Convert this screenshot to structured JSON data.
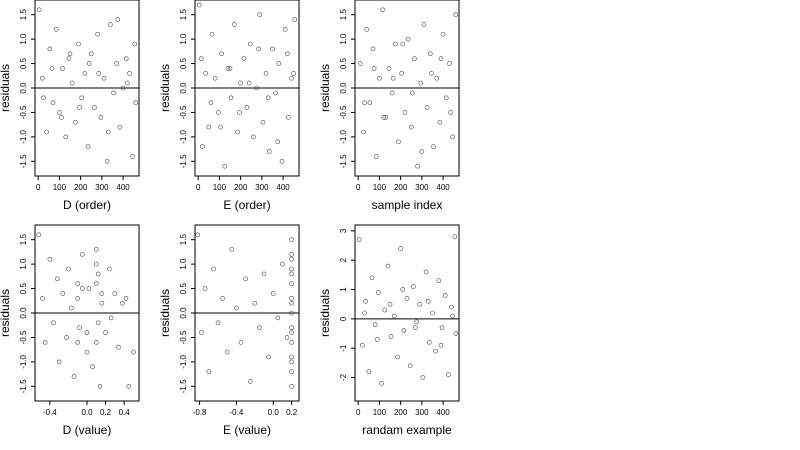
{
  "figure": {
    "background": "#ffffff",
    "point_color": "#444444",
    "line_color": "#000000"
  },
  "chart_data": [
    {
      "type": "scatter",
      "xlabel": "D (order)",
      "ylabel": "residuals",
      "xticks": [
        0,
        100,
        200,
        300,
        400
      ],
      "xtick_labels": [
        "0",
        "100",
        "200",
        "300",
        "400"
      ],
      "yticks": [
        -1.5,
        -1,
        -0.5,
        0,
        0.5,
        1,
        1.5
      ],
      "ytick_labels": [
        "-1.5",
        "-1.0",
        "-0.5",
        "0.0",
        "0.5",
        "1.0",
        "1.5"
      ],
      "xlim": [
        -15,
        475
      ],
      "ylim": [
        -1.8,
        1.8
      ],
      "hline": 0,
      "grid": false,
      "x": [
        5,
        20,
        40,
        55,
        70,
        85,
        100,
        115,
        130,
        145,
        160,
        175,
        190,
        205,
        220,
        235,
        250,
        265,
        280,
        295,
        310,
        325,
        340,
        355,
        370,
        385,
        400,
        415,
        430,
        445,
        455,
        460,
        25,
        65,
        110,
        150,
        195,
        240,
        285,
        330,
        375,
        420
      ],
      "y": [
        1.6,
        0.2,
        -0.9,
        0.8,
        -0.3,
        1.2,
        -0.5,
        0.4,
        -1.0,
        0.6,
        0.1,
        -0.7,
        0.9,
        -0.2,
        0.3,
        -1.2,
        0.7,
        -0.4,
        1.1,
        -0.6,
        0.2,
        -1.5,
        1.3,
        -0.1,
        0.5,
        -0.8,
        0.0,
        0.6,
        0.3,
        -1.4,
        0.9,
        -0.3,
        -0.2,
        0.4,
        -0.6,
        0.7,
        -0.4,
        0.5,
        0.3,
        -0.9,
        1.4,
        0.1
      ]
    },
    {
      "type": "scatter",
      "xlabel": "E (order)",
      "ylabel": "residuals",
      "xticks": [
        0,
        100,
        200,
        300,
        400
      ],
      "xtick_labels": [
        "0",
        "100",
        "200",
        "300",
        "400"
      ],
      "yticks": [
        -1.5,
        -1,
        -0.5,
        0,
        0.5,
        1,
        1.5
      ],
      "ytick_labels": [
        "-1.5",
        "-1.0",
        "-0.5",
        "0.0",
        "0.5",
        "1.0",
        "1.5"
      ],
      "xlim": [
        -15,
        475
      ],
      "ylim": [
        -1.8,
        1.8
      ],
      "hline": 0,
      "grid": false,
      "x": [
        5,
        20,
        35,
        50,
        65,
        80,
        95,
        110,
        125,
        140,
        155,
        170,
        185,
        200,
        215,
        230,
        245,
        260,
        275,
        290,
        305,
        320,
        335,
        350,
        365,
        380,
        395,
        410,
        425,
        440,
        455,
        15,
        60,
        105,
        150,
        195,
        240,
        285,
        330,
        375,
        420,
        450
      ],
      "y": [
        1.7,
        -1.2,
        0.3,
        -0.8,
        1.1,
        0.2,
        -0.5,
        0.7,
        -1.6,
        0.4,
        -0.2,
        1.3,
        -0.9,
        0.1,
        0.6,
        -0.4,
        0.9,
        -1.0,
        0.0,
        1.5,
        -0.7,
        0.3,
        -1.3,
        0.8,
        -0.1,
        0.5,
        -1.5,
        1.2,
        -0.6,
        0.2,
        1.4,
        0.6,
        -0.3,
        -0.8,
        0.4,
        -0.5,
        0.1,
        0.8,
        -0.2,
        -1.1,
        0.7,
        0.3
      ]
    },
    {
      "type": "scatter",
      "xlabel": "sample index",
      "ylabel": "residuals",
      "xticks": [
        0,
        100,
        200,
        300,
        400
      ],
      "xtick_labels": [
        "0",
        "100",
        "200",
        "300",
        "400"
      ],
      "yticks": [
        -1.5,
        -1,
        -0.5,
        0,
        0.5,
        1,
        1.5
      ],
      "ytick_labels": [
        "-1.5",
        "-1.0",
        "-0.5",
        "0.0",
        "0.5",
        "1.0",
        "1.5"
      ],
      "xlim": [
        -15,
        475
      ],
      "ylim": [
        -1.8,
        1.8
      ],
      "hline": 0,
      "grid": false,
      "x": [
        10,
        25,
        40,
        55,
        70,
        85,
        100,
        115,
        130,
        145,
        160,
        175,
        190,
        205,
        220,
        235,
        250,
        265,
        280,
        295,
        310,
        325,
        340,
        355,
        370,
        385,
        400,
        415,
        430,
        445,
        460,
        30,
        75,
        120,
        165,
        210,
        255,
        300,
        345,
        390,
        435
      ],
      "y": [
        0.5,
        -0.9,
        1.2,
        -0.3,
        0.8,
        -1.4,
        0.2,
        1.6,
        -0.6,
        0.4,
        -0.1,
        0.9,
        -1.1,
        0.3,
        -0.5,
        1.0,
        -0.8,
        0.6,
        -1.6,
        0.1,
        1.3,
        -0.4,
        0.7,
        -1.2,
        0.2,
        -0.7,
        1.1,
        -0.2,
        0.5,
        -1.0,
        1.5,
        -0.3,
        0.4,
        -0.6,
        0.2,
        0.9,
        -0.1,
        -1.3,
        0.3,
        0.6,
        -0.5
      ]
    },
    {
      "type": "scatter",
      "xlabel": "D (value)",
      "ylabel": "residuals",
      "xticks": [
        -0.4,
        0,
        0.2,
        0.4
      ],
      "xtick_labels": [
        "-0.4",
        "0.0",
        "0.2",
        "0.4"
      ],
      "yticks": [
        -1.5,
        -1,
        -0.5,
        0,
        0.5,
        1,
        1.5
      ],
      "ytick_labels": [
        "-1.5",
        "-1.0",
        "-0.5",
        "0.0",
        "0.5",
        "1.0",
        "1.5"
      ],
      "xlim": [
        -0.56,
        0.56
      ],
      "ylim": [
        -1.8,
        1.8
      ],
      "hline": 0,
      "grid": false,
      "x": [
        -0.52,
        -0.48,
        -0.45,
        -0.4,
        -0.36,
        -0.32,
        -0.3,
        -0.26,
        -0.22,
        -0.2,
        -0.17,
        -0.14,
        -0.1,
        -0.08,
        -0.05,
        0.0,
        0.02,
        0.06,
        0.1,
        0.1,
        0.12,
        0.14,
        0.16,
        0.2,
        0.24,
        0.26,
        0.3,
        0.34,
        0.38,
        0.42,
        0.45,
        0.5,
        -0.1,
        -0.1,
        0.1,
        0.1,
        0.12,
        -0.05,
        0.0,
        0.16
      ],
      "y": [
        1.6,
        0.3,
        -0.6,
        1.1,
        -0.2,
        0.7,
        -1.0,
        0.4,
        -0.5,
        0.9,
        0.1,
        -1.3,
        0.6,
        -0.3,
        1.2,
        -0.8,
        0.5,
        -1.1,
        1.3,
        -0.6,
        0.8,
        -1.5,
        0.2,
        -0.4,
        0.9,
        -0.1,
        0.4,
        -0.7,
        0.2,
        0.3,
        -1.5,
        -0.8,
        0.3,
        -0.6,
        0.6,
        1.0,
        -0.2,
        0.5,
        -0.4,
        0.4
      ]
    },
    {
      "type": "scatter",
      "xlabel": "E (value)",
      "ylabel": "residuals",
      "xticks": [
        -0.8,
        -0.4,
        0,
        0.2
      ],
      "xtick_labels": [
        "-0.8",
        "-0.4",
        "0.0",
        "0.2"
      ],
      "yticks": [
        -1.5,
        -1,
        -0.5,
        0,
        0.5,
        1,
        1.5
      ],
      "ytick_labels": [
        "-1.5",
        "-1.0",
        "-0.5",
        "0.0",
        "0.5",
        "1.0",
        "1.5"
      ],
      "xlim": [
        -0.85,
        0.28
      ],
      "ylim": [
        -1.8,
        1.8
      ],
      "hline": 0,
      "grid": false,
      "x": [
        -0.82,
        -0.78,
        -0.74,
        -0.7,
        -0.65,
        -0.6,
        -0.55,
        -0.5,
        -0.45,
        -0.4,
        -0.35,
        -0.3,
        -0.25,
        -0.2,
        -0.15,
        -0.1,
        -0.05,
        0.0,
        0.05,
        0.1,
        0.15,
        0.2,
        0.2,
        0.2,
        0.2,
        0.2,
        0.2,
        0.2,
        0.2,
        0.2,
        0.2,
        0.2,
        0.2,
        0.2,
        0.2,
        0.2,
        0.2
      ],
      "y": [
        1.6,
        -0.4,
        0.5,
        -1.2,
        0.9,
        -0.2,
        0.3,
        -0.8,
        1.3,
        0.1,
        -0.6,
        0.7,
        -1.4,
        0.2,
        -0.3,
        0.8,
        -0.9,
        0.4,
        -0.1,
        1.0,
        -0.5,
        1.5,
        1.2,
        0.9,
        0.6,
        0.3,
        0.0,
        -0.3,
        -0.6,
        -0.9,
        -1.2,
        -1.5,
        0.8,
        -0.4,
        0.2,
        -1.0,
        1.1
      ]
    },
    {
      "type": "scatter",
      "xlabel": "randam example",
      "ylabel": "residuals",
      "xticks": [
        0,
        100,
        200,
        300,
        400
      ],
      "xtick_labels": [
        "0",
        "100",
        "200",
        "300",
        "400"
      ],
      "yticks": [
        -2,
        -1,
        0,
        1,
        2,
        3
      ],
      "ytick_labels": [
        "-2",
        "-1",
        "0",
        "1",
        "2",
        "3"
      ],
      "xlim": [
        -15,
        475
      ],
      "ylim": [
        -2.8,
        3.2
      ],
      "hline": 0,
      "grid": false,
      "x": [
        5,
        20,
        35,
        50,
        65,
        80,
        95,
        110,
        125,
        140,
        155,
        170,
        185,
        200,
        215,
        230,
        245,
        260,
        275,
        290,
        305,
        320,
        335,
        350,
        365,
        380,
        395,
        410,
        425,
        440,
        455,
        460,
        30,
        90,
        150,
        210,
        270,
        330,
        390,
        445
      ],
      "y": [
        2.7,
        -0.9,
        0.6,
        -1.8,
        1.4,
        -0.2,
        0.9,
        -2.2,
        0.3,
        1.8,
        -0.6,
        0.1,
        -1.3,
        2.4,
        -0.4,
        0.7,
        -1.6,
        1.1,
        -0.1,
        0.5,
        -2.0,
        1.6,
        -0.8,
        0.2,
        -1.1,
        1.3,
        -0.3,
        0.8,
        -1.9,
        0.4,
        2.8,
        -0.5,
        0.2,
        -0.7,
        0.5,
        1.0,
        -0.3,
        0.6,
        -0.9,
        0.1
      ]
    }
  ]
}
